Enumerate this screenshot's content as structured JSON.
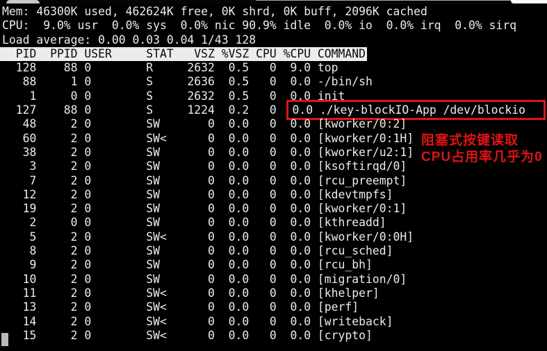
{
  "terminal": {
    "colors": {
      "background": "#000000",
      "text": "#ececec",
      "header_background": "#ececec",
      "header_text": "#0a0a0a",
      "annotation_red": "#de1414",
      "cursor": "#b9b9b9"
    },
    "summary": {
      "mem_line": "Mem: 46300K used, 462624K free, 0K shrd, 0K buff, 2096K cached",
      "cpu_line": "CPU:  9.0% usr  0.0% sys  0.0% nic 90.9% idle  0.0% io  0.0% irq  0.0% sirq",
      "load_line": "Load average: 0.00 0.03 0.04 1/43 128"
    },
    "table": {
      "columns": [
        {
          "label": "PID",
          "width": 5,
          "align": "right",
          "gap": 0
        },
        {
          "label": "PPID",
          "width": 6,
          "align": "right",
          "gap": 0
        },
        {
          "label": "USER",
          "width": 8,
          "align": "left",
          "gap": 1
        },
        {
          "label": "STAT",
          "width": 4,
          "align": "left",
          "gap": 1
        },
        {
          "label": "VSZ",
          "width": 6,
          "align": "right",
          "gap": 0
        },
        {
          "label": "%VSZ",
          "width": 5,
          "align": "right",
          "gap": 0
        },
        {
          "label": "CPU",
          "width": 4,
          "align": "right",
          "gap": 0
        },
        {
          "label": "%CPU",
          "width": 5,
          "align": "right",
          "gap": 0
        },
        {
          "label": "COMMAND",
          "width": 0,
          "align": "left",
          "gap": 1
        }
      ],
      "rows": [
        [
          "128",
          "88",
          "0",
          "R",
          "2632",
          "0.5",
          "0",
          "9.0",
          "top"
        ],
        [
          "88",
          "1",
          "0",
          "S",
          "2636",
          "0.5",
          "0",
          "0.0",
          "-/bin/sh"
        ],
        [
          "1",
          "0",
          "0",
          "S",
          "2632",
          "0.5",
          "0",
          "0.0",
          "init"
        ],
        [
          "127",
          "88",
          "0",
          "S",
          "1224",
          "0.2",
          "0",
          "0.0",
          "./key-blockIO-App /dev/blockio"
        ],
        [
          "48",
          "2",
          "0",
          "SW",
          "0",
          "0.0",
          "0",
          "0.0",
          "[kworker/0:2]"
        ],
        [
          "60",
          "2",
          "0",
          "SW<",
          "0",
          "0.0",
          "0",
          "0.0",
          "[kworker/0:1H]"
        ],
        [
          "38",
          "2",
          "0",
          "SW",
          "0",
          "0.0",
          "0",
          "0.0",
          "[kworker/u2:1]"
        ],
        [
          "3",
          "2",
          "0",
          "SW",
          "0",
          "0.0",
          "0",
          "0.0",
          "[ksoftirqd/0]"
        ],
        [
          "7",
          "2",
          "0",
          "SW",
          "0",
          "0.0",
          "0",
          "0.0",
          "[rcu_preempt]"
        ],
        [
          "12",
          "2",
          "0",
          "SW",
          "0",
          "0.0",
          "0",
          "0.0",
          "[kdevtmpfs]"
        ],
        [
          "19",
          "2",
          "0",
          "SW",
          "0",
          "0.0",
          "0",
          "0.0",
          "[kworker/0:1]"
        ],
        [
          "2",
          "0",
          "0",
          "SW",
          "0",
          "0.0",
          "0",
          "0.0",
          "[kthreadd]"
        ],
        [
          "5",
          "2",
          "0",
          "SW<",
          "0",
          "0.0",
          "0",
          "0.0",
          "[kworker/0:0H]"
        ],
        [
          "8",
          "2",
          "0",
          "SW",
          "0",
          "0.0",
          "0",
          "0.0",
          "[rcu_sched]"
        ],
        [
          "9",
          "2",
          "0",
          "SW",
          "0",
          "0.0",
          "0",
          "0.0",
          "[rcu_bh]"
        ],
        [
          "10",
          "2",
          "0",
          "SW",
          "0",
          "0.0",
          "0",
          "0.0",
          "[migration/0]"
        ],
        [
          "11",
          "2",
          "0",
          "SW<",
          "0",
          "0.0",
          "0",
          "0.0",
          "[khelper]"
        ],
        [
          "13",
          "2",
          "0",
          "SW<",
          "0",
          "0.0",
          "0",
          "0.0",
          "[perf]"
        ],
        [
          "14",
          "2",
          "0",
          "SW<",
          "0",
          "0.0",
          "0",
          "0.0",
          "[writeback]"
        ],
        [
          "15",
          "2",
          "0",
          "SW<",
          "0",
          "0.0",
          "0",
          "0.0",
          "[crypto]"
        ]
      ],
      "highlight_row_index": 3,
      "highlight_from_column": "%CPU"
    },
    "cursor_visible": true
  },
  "annotations": {
    "boxed_text": "0.0 ./key-blockIO-App /dev/blockio",
    "label_line1": "阻塞式按键读取",
    "label_line2": "CPU占用率几乎为0"
  }
}
